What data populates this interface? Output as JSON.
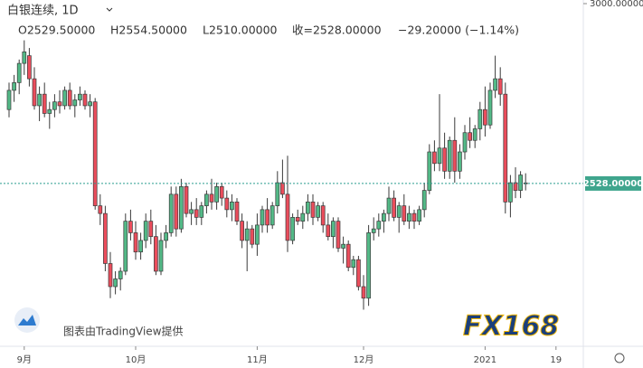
{
  "chart_data": {
    "type": "candlestick",
    "symbol": "白银连续, 1D",
    "ohlc_text": [
      "O2529.50000",
      "H2554.50000",
      "L2510.00000",
      "收=2528.00000",
      "−29.20000 (−1.14%)"
    ],
    "watermark": "图表由TradingView提供",
    "logo": "FX168",
    "up_color": "#53b987",
    "down_color": "#eb4d5c",
    "price_line": {
      "value": 2528,
      "label": "2528.00000"
    },
    "ylim": [
      2112,
      3000
    ],
    "yticks": [
      {
        "value": 3000,
        "label": "3000.00000"
      }
    ],
    "categories": [
      null,
      null,
      null,
      "9月",
      null,
      null,
      null,
      null,
      null,
      null,
      null,
      null,
      null,
      null,
      null,
      null,
      null,
      null,
      null,
      null,
      null,
      null,
      null,
      null,
      null,
      "10月",
      null,
      null,
      null,
      null,
      null,
      null,
      null,
      null,
      null,
      null,
      null,
      null,
      null,
      null,
      null,
      null,
      null,
      null,
      null,
      null,
      null,
      null,
      null,
      "11月",
      null,
      null,
      null,
      null,
      null,
      null,
      null,
      null,
      null,
      null,
      null,
      null,
      null,
      null,
      null,
      null,
      null,
      null,
      null,
      null,
      "12月",
      null,
      null,
      null,
      null,
      null,
      null,
      null,
      null,
      null,
      null,
      null,
      null,
      null,
      null,
      null,
      null,
      null,
      null,
      null,
      null,
      null,
      null,
      null,
      "2021",
      null,
      null,
      null,
      null,
      null,
      null,
      null,
      null,
      null,
      null,
      null,
      null,
      null,
      "19"
    ],
    "open": [
      2720,
      2770,
      2790,
      2840,
      2860,
      2800,
      2730,
      2760,
      2710,
      2720,
      2740,
      2730,
      2770,
      2730,
      2745,
      2760,
      2730,
      2740,
      2470,
      2450,
      2320,
      2260,
      2280,
      2300,
      2430,
      2400,
      2350,
      2380,
      2430,
      2390,
      2300,
      2380,
      2400,
      2500,
      2410,
      2520,
      2450,
      2460,
      2440,
      2470,
      2500,
      2480,
      2520,
      2490,
      2460,
      2480,
      2430,
      2380,
      2410,
      2370,
      2420,
      2460,
      2420,
      2470,
      2530,
      2500,
      2380,
      2440,
      2430,
      2450,
      2480,
      2440,
      2470,
      2420,
      2390,
      2430,
      2360,
      2370,
      2310,
      2330,
      2260,
      2230,
      2400,
      2410,
      2430,
      2450,
      2490,
      2440,
      2470,
      2430,
      2450,
      2430,
      2460,
      2510,
      2610,
      2580,
      2620,
      2560,
      2640,
      2560,
      2610,
      2660,
      2640,
      2670,
      2720,
      2680,
      2770,
      2800,
      2760,
      2480,
      2530,
      2510,
      2529.5,
      null,
      null,
      null,
      null,
      null,
      null
    ],
    "high": [
      2790,
      2810,
      2850,
      2900,
      2880,
      2830,
      2780,
      2790,
      2740,
      2760,
      2770,
      2780,
      2790,
      2760,
      2780,
      2770,
      2760,
      2750,
      2500,
      2470,
      2350,
      2300,
      2310,
      2450,
      2460,
      2430,
      2400,
      2450,
      2460,
      2420,
      2400,
      2420,
      2520,
      2520,
      2540,
      2530,
      2480,
      2490,
      2480,
      2510,
      2540,
      2530,
      2530,
      2510,
      2500,
      2490,
      2450,
      2430,
      2420,
      2450,
      2470,
      2490,
      2480,
      2560,
      2590,
      2600,
      2450,
      2460,
      2470,
      2500,
      2500,
      2480,
      2480,
      2450,
      2440,
      2440,
      2390,
      2380,
      2340,
      2340,
      2290,
      2420,
      2440,
      2450,
      2460,
      2520,
      2510,
      2480,
      2500,
      2470,
      2460,
      2470,
      2530,
      2630,
      2640,
      2760,
      2660,
      2650,
      2700,
      2630,
      2680,
      2700,
      2680,
      2740,
      2780,
      2790,
      2860,
      2830,
      2790,
      2550,
      2570,
      2560,
      2554.5,
      null,
      null,
      null,
      null,
      null,
      null
    ],
    "low": [
      2700,
      2740,
      2760,
      2810,
      2780,
      2720,
      2690,
      2700,
      2670,
      2700,
      2710,
      2720,
      2720,
      2700,
      2730,
      2720,
      2700,
      2460,
      2420,
      2300,
      2230,
      2240,
      2250,
      2290,
      2380,
      2330,
      2330,
      2360,
      2370,
      2290,
      2290,
      2360,
      2390,
      2390,
      2400,
      2440,
      2420,
      2420,
      2420,
      2450,
      2460,
      2460,
      2470,
      2440,
      2430,
      2420,
      2360,
      2300,
      2360,
      2340,
      2400,
      2400,
      2410,
      2450,
      2490,
      2350,
      2370,
      2420,
      2410,
      2430,
      2420,
      2430,
      2400,
      2380,
      2360,
      2350,
      2320,
      2300,
      2290,
      2250,
      2200,
      2210,
      2380,
      2390,
      2400,
      2430,
      2430,
      2400,
      2420,
      2410,
      2410,
      2420,
      2440,
      2500,
      2560,
      2560,
      2540,
      2540,
      2530,
      2540,
      2590,
      2620,
      2620,
      2640,
      2650,
      2670,
      2750,
      2730,
      2450,
      2440,
      2490,
      2490,
      2510,
      null,
      null,
      null,
      null,
      null,
      null
    ],
    "close": [
      2770,
      2790,
      2840,
      2870,
      2800,
      2730,
      2760,
      2710,
      2720,
      2740,
      2730,
      2770,
      2730,
      2745,
      2760,
      2730,
      2740,
      2470,
      2450,
      2320,
      2260,
      2280,
      2300,
      2430,
      2400,
      2350,
      2380,
      2430,
      2390,
      2300,
      2380,
      2400,
      2500,
      2410,
      2520,
      2450,
      2460,
      2440,
      2470,
      2500,
      2480,
      2520,
      2490,
      2460,
      2480,
      2430,
      2380,
      2410,
      2370,
      2420,
      2460,
      2420,
      2470,
      2530,
      2500,
      2380,
      2440,
      2430,
      2450,
      2480,
      2440,
      2470,
      2420,
      2390,
      2430,
      2360,
      2370,
      2310,
      2330,
      2260,
      2230,
      2400,
      2410,
      2430,
      2450,
      2490,
      2440,
      2470,
      2430,
      2450,
      2430,
      2460,
      2510,
      2610,
      2580,
      2620,
      2560,
      2640,
      2560,
      2610,
      2660,
      2640,
      2670,
      2720,
      2680,
      2770,
      2800,
      2760,
      2480,
      2530,
      2510,
      2550,
      2528,
      null,
      null,
      null,
      null,
      null,
      null
    ]
  }
}
